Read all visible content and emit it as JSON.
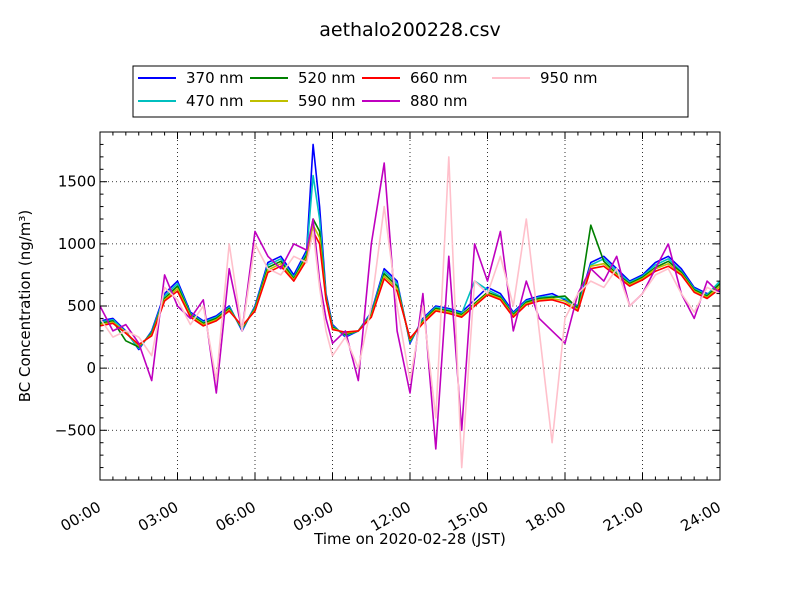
{
  "chart_data": {
    "type": "line",
    "title": "aethalo200228.csv",
    "xlabel": "Time on 2020-02-28 (JST)",
    "ylabel": "BC Concentration (ng/m³)",
    "xlim": [
      "00:00",
      "24:00"
    ],
    "ylim": [
      -900,
      1900
    ],
    "x_tick_labels": [
      "00:00",
      "03:00",
      "06:00",
      "09:00",
      "12:00",
      "15:00",
      "18:00",
      "21:00",
      "24:00"
    ],
    "y_tick_values": [
      -500,
      0,
      500,
      1000,
      1500
    ],
    "y_tick_labels": [
      "−500",
      "0",
      "500",
      "1000",
      "1500"
    ],
    "grid": true,
    "legend_position": "top",
    "x": [
      "00:00",
      "00:30",
      "01:00",
      "01:30",
      "02:00",
      "02:30",
      "03:00",
      "03:30",
      "04:00",
      "04:30",
      "05:00",
      "05:30",
      "06:00",
      "06:30",
      "07:00",
      "07:30",
      "08:00",
      "08:15",
      "08:30",
      "08:45",
      "09:00",
      "09:30",
      "10:00",
      "10:30",
      "11:00",
      "11:30",
      "12:00",
      "12:30",
      "13:00",
      "13:30",
      "14:00",
      "14:30",
      "15:00",
      "15:30",
      "16:00",
      "16:30",
      "17:00",
      "17:30",
      "18:00",
      "18:30",
      "19:00",
      "19:30",
      "20:00",
      "20:30",
      "21:00",
      "21:30",
      "22:00",
      "22:30",
      "23:00",
      "23:30",
      "24:00"
    ],
    "series": [
      {
        "name": "370 nm",
        "color": "#0000ff",
        "values": [
          380,
          400,
          300,
          150,
          300,
          600,
          700,
          450,
          380,
          420,
          500,
          300,
          500,
          850,
          900,
          750,
          950,
          1800,
          1300,
          600,
          350,
          250,
          300,
          450,
          800,
          700,
          200,
          400,
          500,
          480,
          450,
          550,
          650,
          600,
          450,
          550,
          580,
          600,
          550,
          500,
          850,
          900,
          800,
          700,
          750,
          850,
          900,
          800,
          650,
          600,
          620
        ]
      },
      {
        "name": "470 nm",
        "color": "#00bfbf",
        "values": [
          370,
          390,
          290,
          160,
          290,
          580,
          680,
          440,
          370,
          410,
          490,
          310,
          490,
          830,
          880,
          730,
          930,
          1550,
          1200,
          580,
          340,
          260,
          300,
          440,
          780,
          680,
          210,
          390,
          490,
          470,
          440,
          700,
          630,
          580,
          440,
          540,
          570,
          580,
          560,
          490,
          830,
          880,
          780,
          690,
          740,
          830,
          880,
          780,
          640,
          590,
          700
        ]
      },
      {
        "name": "520 nm",
        "color": "#008000",
        "values": [
          360,
          380,
          220,
          170,
          280,
          560,
          660,
          430,
          360,
          400,
          480,
          320,
          480,
          810,
          860,
          720,
          910,
          1200,
          1100,
          570,
          330,
          270,
          300,
          430,
          760,
          660,
          220,
          380,
          480,
          460,
          430,
          520,
          610,
          570,
          430,
          530,
          560,
          570,
          580,
          480,
          1150,
          860,
          760,
          680,
          730,
          810,
          860,
          770,
          630,
          580,
          680
        ]
      },
      {
        "name": "590 nm",
        "color": "#bfbf00",
        "values": [
          350,
          370,
          290,
          180,
          270,
          550,
          640,
          420,
          350,
          390,
          470,
          330,
          470,
          790,
          840,
          710,
          890,
          1150,
          1050,
          560,
          320,
          280,
          300,
          420,
          740,
          640,
          230,
          370,
          470,
          450,
          420,
          510,
          600,
          560,
          420,
          520,
          550,
          560,
          540,
          470,
          820,
          840,
          750,
          670,
          720,
          800,
          840,
          760,
          620,
          570,
          660
        ]
      },
      {
        "name": "660 nm",
        "color": "#ff0000",
        "values": [
          340,
          360,
          280,
          190,
          260,
          540,
          620,
          410,
          340,
          380,
          460,
          340,
          460,
          770,
          820,
          700,
          870,
          1100,
          1000,
          550,
          310,
          290,
          300,
          410,
          720,
          620,
          240,
          360,
          460,
          440,
          410,
          500,
          590,
          550,
          410,
          510,
          540,
          550,
          520,
          460,
          800,
          820,
          740,
          660,
          710,
          780,
          820,
          750,
          610,
          560,
          640
        ]
      },
      {
        "name": "880 nm",
        "color": "#bf00bf",
        "values": [
          500,
          300,
          350,
          200,
          -100,
          750,
          500,
          400,
          550,
          -200,
          800,
          300,
          1100,
          900,
          800,
          1000,
          950,
          1200,
          700,
          400,
          200,
          300,
          -100,
          1000,
          1650,
          300,
          -200,
          600,
          -650,
          900,
          -500,
          1000,
          700,
          1100,
          300,
          700,
          400,
          300,
          200,
          600,
          800,
          700,
          900,
          500,
          600,
          800,
          1000,
          600,
          400,
          700,
          600
        ]
      },
      {
        "name": "950 nm",
        "color": "#ffc0cb",
        "values": [
          400,
          250,
          300,
          250,
          100,
          650,
          550,
          350,
          500,
          -100,
          1000,
          300,
          1000,
          800,
          750,
          900,
          850,
          1100,
          650,
          300,
          100,
          250,
          0,
          500,
          1300,
          500,
          -100,
          500,
          -400,
          1700,
          -800,
          700,
          600,
          900,
          500,
          1200,
          300,
          -600,
          400,
          600,
          700,
          650,
          800,
          500,
          600,
          750,
          800,
          600,
          450,
          650,
          600
        ]
      }
    ]
  }
}
